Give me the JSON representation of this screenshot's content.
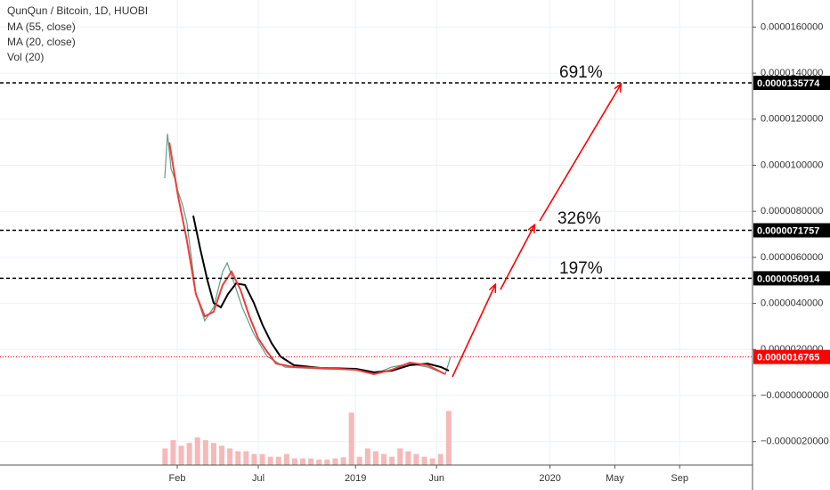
{
  "chart_data": {
    "type": "line",
    "title": "QunQun / Bitcoin, 1D, HUOBI",
    "xlim": [
      -9.934,
      36.495
    ],
    "xticks": [
      {
        "value": 1,
        "label": "Feb"
      },
      {
        "value": 6,
        "label": "Jul"
      },
      {
        "value": 12,
        "label": "2019"
      },
      {
        "value": 17,
        "label": "Jun"
      },
      {
        "value": 24,
        "label": "2020"
      },
      {
        "value": 28,
        "label": "May"
      },
      {
        "value": 32,
        "label": "Sep"
      }
    ],
    "ylim": [
      -3.017e-06,
      1.7176e-05
    ],
    "yticks": [
      {
        "value": 1.6e-05,
        "label": "0.0000160000"
      },
      {
        "value": 1.4e-05,
        "label": "0.0000140000"
      },
      {
        "value": 1.2e-05,
        "label": "0.0000120000"
      },
      {
        "value": 1e-05,
        "label": "0.0000100000"
      },
      {
        "value": 8e-06,
        "label": "0.0000080000"
      },
      {
        "value": 6e-06,
        "label": "0.0000060000"
      },
      {
        "value": 4e-06,
        "label": "0.0000040000"
      },
      {
        "value": 2e-06,
        "label": "0.0000020000"
      },
      {
        "value": 0,
        "label": "−0.0000000000"
      },
      {
        "value": -2e-06,
        "label": "−0.0000020000"
      }
    ],
    "grid": true,
    "price": {
      "color": "#5f9e86",
      "x": [
        0.23,
        0.4,
        0.62,
        0.84,
        1.05,
        1.33,
        1.6,
        1.88,
        2.15,
        2.43,
        2.7,
        3.25,
        3.8,
        4.08,
        4.46,
        5.01,
        5.73,
        6.55,
        7.65,
        9.85,
        12.04,
        13.14,
        14.24,
        15.34,
        16.44,
        17.54,
        17.87
      ],
      "values": [
        9.44e-06,
        1.137e-05,
        9.83e-06,
        9.44e-06,
        8.86e-06,
        8.28e-06,
        7.5e-06,
        5.96e-06,
        4.41e-06,
        3.83e-06,
        3.25e-06,
        3.83e-06,
        5.38e-06,
        5.76e-06,
        4.99e-06,
        3.83e-06,
        2.67e-06,
        1.7e-06,
        1.24e-06,
        1.16e-06,
        1.12e-06,
        9.3e-07,
        1.24e-06,
        1.39e-06,
        1.24e-06,
        9.3e-07,
        1.6765e-06
      ]
    },
    "series": [
      {
        "name": "MA (55, close)",
        "color": "#000000",
        "x": [
          1.99,
          2.43,
          2.87,
          3.25,
          3.69,
          4.13,
          4.63,
          5.18,
          5.73,
          6.27,
          6.82,
          7.37,
          8.2,
          9.85,
          12.04,
          13.14,
          14.24,
          15.34,
          16.44,
          17.27,
          17.76
        ],
        "values": [
          7.81e-06,
          6.34e-06,
          4.99e-06,
          4.02e-06,
          3.83e-06,
          4.41e-06,
          4.87e-06,
          4.8e-06,
          4.02e-06,
          3.06e-06,
          2.28e-06,
          1.7e-06,
          1.32e-06,
          1.2e-06,
          1.16e-06,
          1.01e-06,
          1.08e-06,
          1.32e-06,
          1.39e-06,
          1.24e-06,
          1.08e-06
        ]
      },
      {
        "name": "MA (20, close)",
        "color": "#f03c3c",
        "x": [
          0.51,
          1.05,
          1.6,
          2.15,
          2.7,
          3.25,
          3.8,
          4.35,
          4.9,
          5.45,
          6.0,
          6.55,
          7.1,
          8.2,
          9.85,
          12.04,
          13.14,
          14.24,
          15.34,
          16.44,
          17.54
        ],
        "values": [
          1.099e-05,
          8.67e-06,
          6.73e-06,
          4.41e-06,
          3.44e-06,
          3.64e-06,
          4.8e-06,
          5.38e-06,
          4.6e-06,
          3.44e-06,
          2.48e-06,
          1.9e-06,
          1.39e-06,
          1.24e-06,
          1.2e-06,
          1.12e-06,
          9.3e-07,
          1.12e-06,
          1.43e-06,
          1.32e-06,
          9.3e-07
        ]
      }
    ],
    "volume": {
      "name": "Vol (20)",
      "color": "#f2a7a7",
      "ylim": [
        0,
        100
      ],
      "x": [
        0.25,
        0.75,
        1.25,
        1.75,
        2.25,
        2.75,
        3.25,
        3.75,
        4.25,
        4.75,
        5.25,
        5.75,
        6.25,
        6.75,
        7.25,
        7.75,
        8.25,
        8.75,
        9.25,
        9.75,
        10.25,
        10.75,
        11.25,
        11.75,
        12.25,
        12.75,
        13.25,
        13.75,
        14.25,
        14.75,
        15.25,
        15.75,
        16.25,
        16.75,
        17.25,
        17.75
      ],
      "values": [
        30,
        45,
        35,
        40,
        50,
        45,
        40,
        35,
        30,
        25,
        25,
        20,
        20,
        15,
        15,
        20,
        12,
        12,
        12,
        10,
        10,
        12,
        14,
        95,
        15,
        30,
        25,
        20,
        15,
        30,
        25,
        20,
        15,
        12,
        20,
        98
      ]
    },
    "levels": [
      {
        "value": 1.35774e-05,
        "label": "0.0000135774",
        "color": "#000000"
      },
      {
        "value": 7.1757e-06,
        "label": "0.0000071757",
        "color": "#000000"
      },
      {
        "value": 5.0914e-06,
        "label": "0.0000050914",
        "color": "#000000"
      }
    ],
    "price_line": {
      "value": 1.6765e-06,
      "label": "0.0000016765",
      "color": "#ff0000"
    },
    "annotations": [
      "691%",
      "326%",
      "197%"
    ]
  }
}
